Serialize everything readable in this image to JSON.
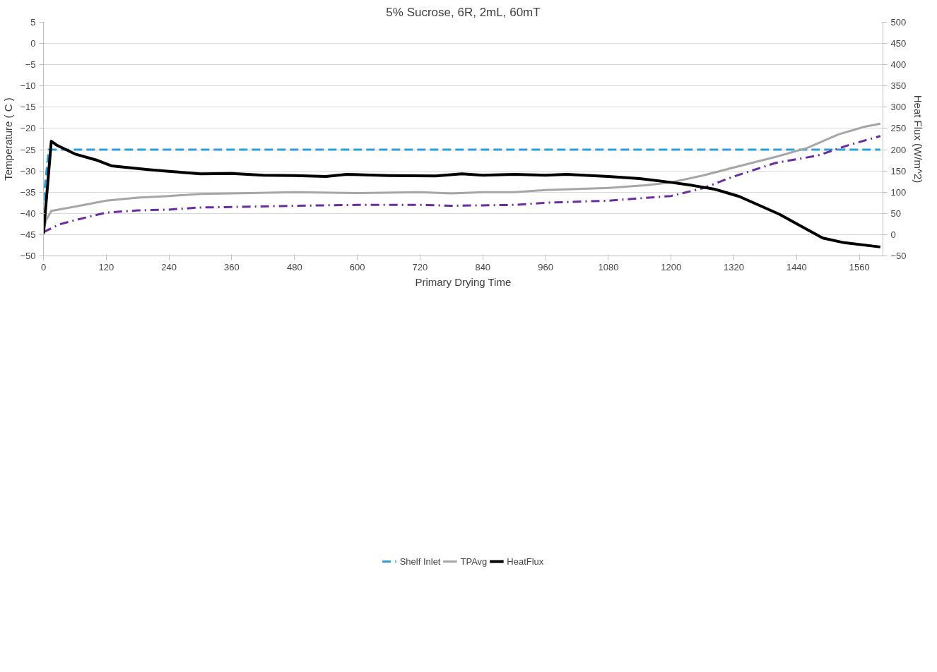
{
  "chart_data": {
    "type": "line",
    "title": "5% Sucrose, 6R, 2mL, 60mT",
    "xlabel": "Primary Drying Time",
    "ylabel": "Temperature ( C )",
    "y2label": "Heat Flux (W/m^2)",
    "xlim": [
      0,
      1605
    ],
    "xticks": [
      0,
      120,
      240,
      360,
      480,
      600,
      720,
      840,
      960,
      1080,
      1200,
      1320,
      1440,
      1560
    ],
    "ylim": [
      -50,
      5
    ],
    "yticks": [
      -50,
      -45,
      -40,
      -35,
      -30,
      -25,
      -20,
      -15,
      -10,
      -5,
      0,
      5
    ],
    "y2lim": [
      -50,
      500
    ],
    "y2ticks": [
      -50,
      0,
      50,
      100,
      150,
      200,
      250,
      300,
      350,
      400,
      450,
      500
    ],
    "grid": "y",
    "legend": "bottom",
    "series": [
      {
        "name": "Shelf Inlet",
        "color": "#2e9fd6",
        "line_style": "dashed",
        "x": [
          0,
          10,
          1600
        ],
        "values": [
          -37,
          -25,
          -25
        ]
      },
      {
        "color": "#6a2ca0",
        "line_style": "dashdot",
        "x": [
          0,
          30,
          60,
          120,
          180,
          240,
          300,
          360,
          480,
          600,
          720,
          780,
          900,
          960,
          1080,
          1200,
          1260,
          1320,
          1400,
          1480,
          1540,
          1600
        ],
        "values": [
          -44.4,
          -42.6,
          -41.6,
          -39.8,
          -39.3,
          -39.1,
          -38.6,
          -38.5,
          -38.2,
          -38,
          -38,
          -38.2,
          -38,
          -37.5,
          -37,
          -35.9,
          -34.1,
          -31.3,
          -28.1,
          -26.4,
          -23.9,
          -21.8
        ]
      },
      {
        "name": "TPAvg",
        "color": "#a6a6a6",
        "line_style": "solid",
        "x": [
          0,
          5,
          15,
          60,
          120,
          180,
          240,
          300,
          360,
          480,
          600,
          720,
          780,
          840,
          900,
          960,
          1080,
          1150,
          1200,
          1260,
          1320,
          1400,
          1460,
          1520,
          1570,
          1600
        ],
        "values": [
          -44.4,
          -41.6,
          -39.4,
          -38.4,
          -37,
          -36.3,
          -35.9,
          -35.4,
          -35.3,
          -35,
          -35.2,
          -35,
          -35.3,
          -35,
          -35,
          -34.5,
          -34,
          -33.4,
          -32.7,
          -31.1,
          -29.2,
          -26.7,
          -24.6,
          -21.4,
          -19.6,
          -18.9
        ]
      },
      {
        "name": "HeatFlux",
        "color": "#000000",
        "line_style": "solid",
        "axis": "y2",
        "x": [
          0,
          15,
          25,
          60,
          100,
          130,
          160,
          200,
          240,
          300,
          360,
          420,
          480,
          540,
          580,
          660,
          750,
          800,
          840,
          900,
          960,
          1000,
          1080,
          1140,
          1200,
          1240,
          1283,
          1330,
          1407,
          1448,
          1490,
          1531,
          1600
        ],
        "values": [
          2,
          220,
          211,
          190,
          176,
          162,
          158,
          153,
          149,
          143,
          144,
          140,
          139,
          137,
          142,
          139,
          138,
          143,
          140,
          142,
          140,
          142,
          137,
          132,
          123,
          116,
          107,
          90,
          48,
          20,
          -8,
          -19,
          -29
        ]
      }
    ]
  }
}
